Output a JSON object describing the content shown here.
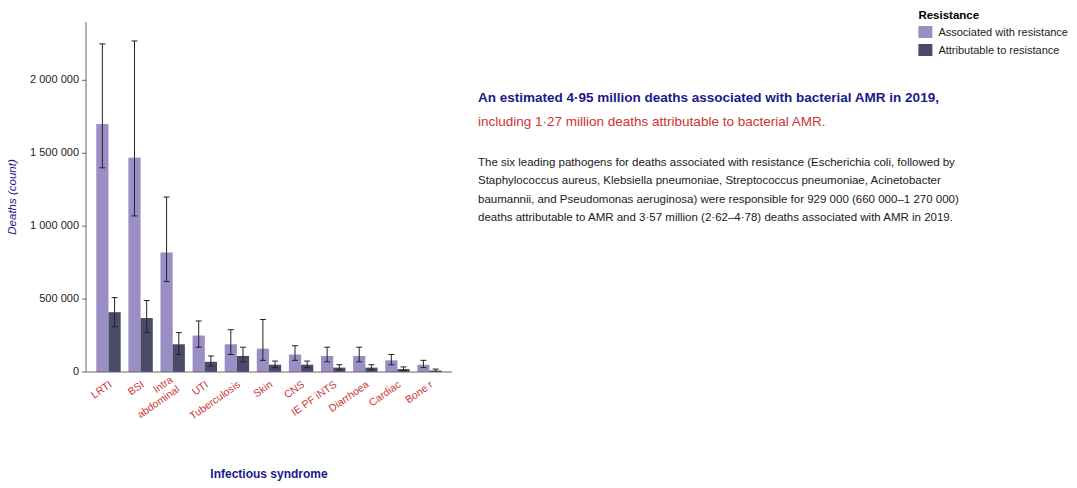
{
  "chart_data": {
    "type": "bar",
    "title": "An estimated 4·95 million deaths associated with bacterial AMR in 2019,",
    "subtitle": "including 1·27 million deaths attributable to bacterial AMR.",
    "annotations": [
      "The six leading pathogens for deaths associated with resistance (Escherichia coli, followed by\nStaphylococcus aureus, Klebsiella pneumoniae, Streptococcus pneumoniae, Acinetobacter\nbaumannii, and Pseudomonas aeruginosa) were responsible for 929 000 (660 000–1 270 000)\ndeaths attributable to AMR and 3·57 million (2·62–4·78) deaths associated with AMR in 2019."
    ],
    "x_label": "Infectious syndrome",
    "y_label": "Deaths (count)",
    "categories": [
      "LRTI",
      "BSI",
      "Intra\nabdominal",
      "UTI",
      "Tuberculosis",
      "Skin",
      "CNS",
      "IE PF iNTS",
      "Diarrhoea",
      "Cardiac",
      "Bone r"
    ],
    "series": [
      {
        "name": "Associated with resistance",
        "color": "#9b8ec4",
        "values": [
          1700000,
          1470000,
          820000,
          250000,
          190000,
          160000,
          120000,
          110000,
          110000,
          80000,
          50000
        ],
        "err_low": [
          300000,
          400000,
          200000,
          80000,
          70000,
          80000,
          40000,
          40000,
          40000,
          30000,
          20000
        ],
        "err_high": [
          550000,
          800000,
          380000,
          100000,
          100000,
          200000,
          60000,
          60000,
          60000,
          40000,
          30000
        ]
      },
      {
        "name": "Attributable to resistance",
        "color": "#4a4a6a",
        "values": [
          410000,
          370000,
          190000,
          70000,
          110000,
          50000,
          50000,
          30000,
          30000,
          20000,
          10000
        ],
        "err_low": [
          100000,
          100000,
          70000,
          30000,
          40000,
          20000,
          20000,
          15000,
          15000,
          10000,
          8000
        ],
        "err_high": [
          100000,
          120000,
          80000,
          40000,
          60000,
          25000,
          25000,
          20000,
          20000,
          15000,
          10000
        ]
      }
    ],
    "legend_title": "Resistance",
    "legend": "upper right",
    "ylim": [
      0,
      2400000
    ],
    "yticks": [
      0,
      {
        "value": 500000,
        "label": "500 000"
      },
      {
        "value": 1000000,
        "label": "1 000 000"
      },
      {
        "value": 1500000,
        "label": "1 500 000"
      },
      {
        "value": 2000000,
        "label": "2 000 000"
      }
    ],
    "grid": false
  }
}
